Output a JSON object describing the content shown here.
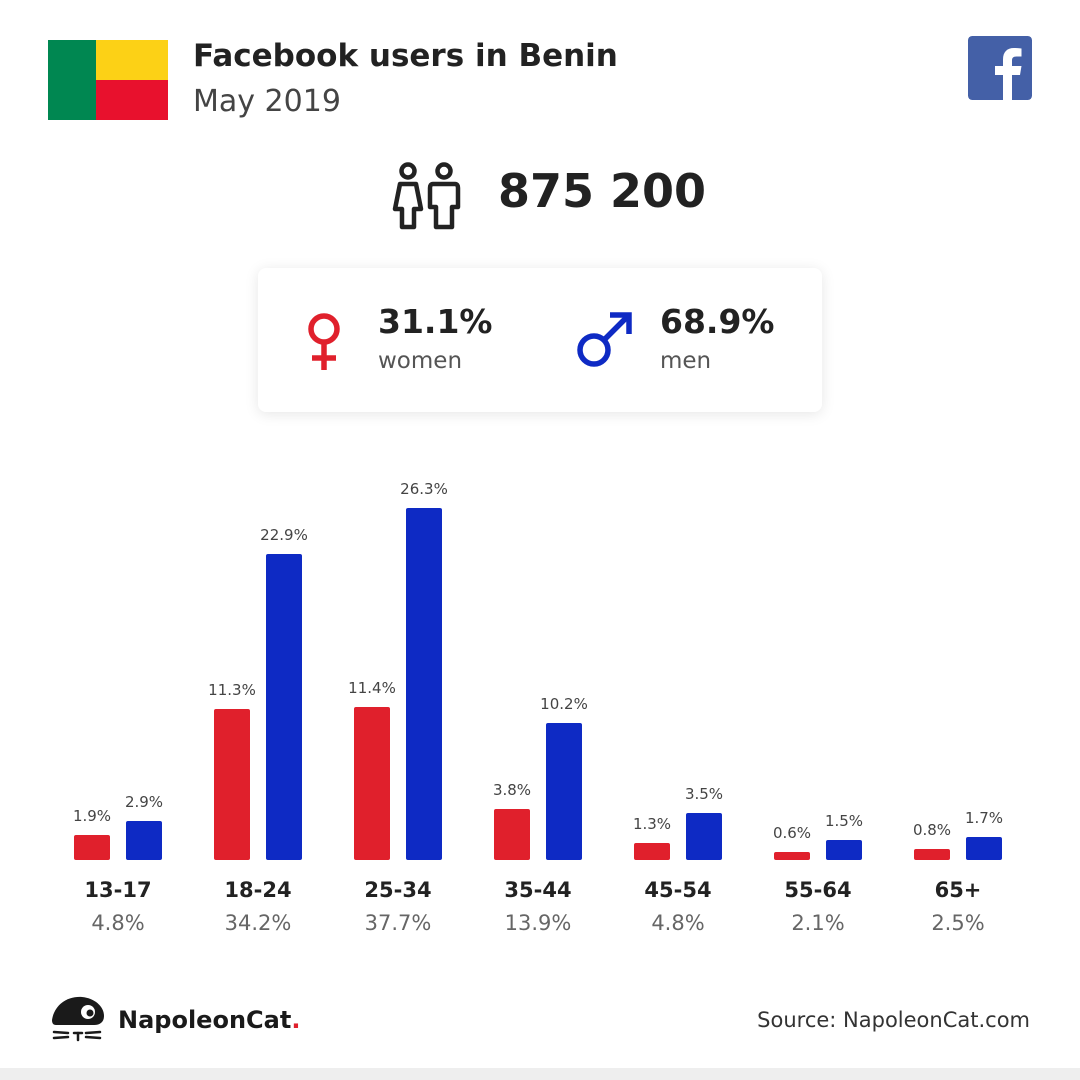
{
  "header": {
    "title": "Facebook users in Benin",
    "subtitle": "May 2019"
  },
  "colors": {
    "women": "#e0202c",
    "men": "#0e2ac4",
    "facebook": "#4460a7",
    "flag_green": "#008751",
    "flag_yellow": "#fcd116",
    "flag_red": "#e8112d"
  },
  "icons": [
    "benin-flag-icon",
    "facebook-logo-icon",
    "users-icon",
    "female-symbol-icon",
    "male-symbol-icon",
    "napoleoncat-logo-icon"
  ],
  "summary": {
    "total_users": "875 200",
    "women": {
      "percent": "31.1%",
      "label": "women"
    },
    "men": {
      "percent": "68.9%",
      "label": "men"
    }
  },
  "chart_data": {
    "type": "bar",
    "categories": [
      "13-17",
      "18-24",
      "25-34",
      "35-44",
      "45-54",
      "55-64",
      "65+"
    ],
    "category_totals": [
      "4.8%",
      "34.2%",
      "37.7%",
      "13.9%",
      "4.8%",
      "2.1%",
      "2.5%"
    ],
    "series": [
      {
        "name": "women",
        "values": [
          1.9,
          11.3,
          11.4,
          3.8,
          1.3,
          0.6,
          0.8
        ],
        "labels": [
          "1.9%",
          "11.3%",
          "11.4%",
          "3.8%",
          "1.3%",
          "0.6%",
          "0.8%"
        ]
      },
      {
        "name": "men",
        "values": [
          2.9,
          22.9,
          26.3,
          10.2,
          3.5,
          1.5,
          1.7
        ],
        "labels": [
          "2.9%",
          "22.9%",
          "26.3%",
          "10.2%",
          "3.5%",
          "1.5%",
          "1.7%"
        ]
      }
    ],
    "ylim": [
      0,
      26.3
    ],
    "grid": false,
    "legend": "none"
  },
  "footer": {
    "brand": "NapoleonCat",
    "brand_dot": ".",
    "source": "Source: NapoleonCat.com"
  }
}
